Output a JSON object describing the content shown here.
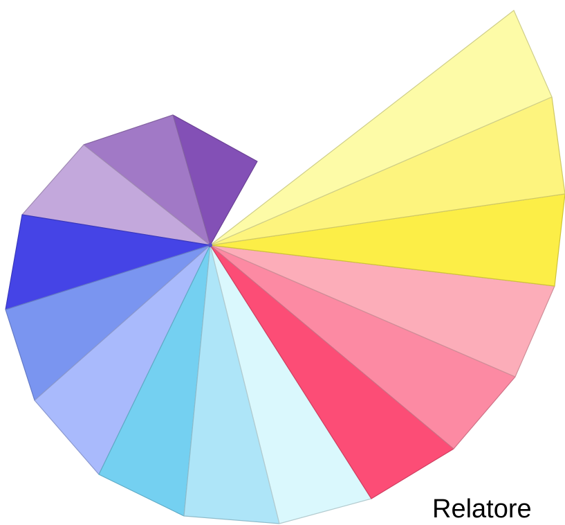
{
  "caption": "Relatore",
  "segments": [
    {
      "name": "violet-dark",
      "color": "#8350B6"
    },
    {
      "name": "violet-medium",
      "color": "#A179C6"
    },
    {
      "name": "lavender",
      "color": "#C3A8DC"
    },
    {
      "name": "royal-blue",
      "color": "#4544E6"
    },
    {
      "name": "cornflower-blue",
      "color": "#7A95F0"
    },
    {
      "name": "periwinkle",
      "color": "#A9BAFC"
    },
    {
      "name": "sky-blue",
      "color": "#74D0F1"
    },
    {
      "name": "pale-sky-blue",
      "color": "#AEE5F8"
    },
    {
      "name": "ice-blue",
      "color": "#DAF8FD"
    },
    {
      "name": "crimson-pink",
      "color": "#FC4D76"
    },
    {
      "name": "rose-pink",
      "color": "#FC8AA3"
    },
    {
      "name": "light-pink",
      "color": "#FCADB9"
    },
    {
      "name": "lemon-yellow",
      "color": "#FCEE47"
    },
    {
      "name": "butter-yellow",
      "color": "#FDF47E"
    },
    {
      "name": "pale-yellow",
      "color": "#FDFBA7"
    }
  ]
}
